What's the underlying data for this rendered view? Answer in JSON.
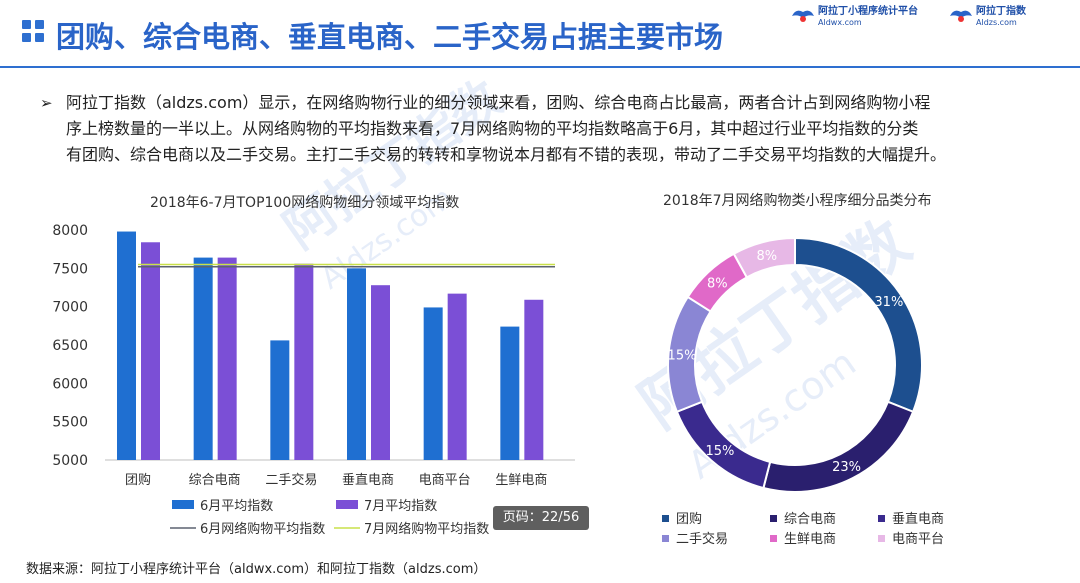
{
  "header": {
    "title": "团购、综合电商、垂直电商、二手交易占据主要市场",
    "logos": [
      {
        "name": "阿拉丁小程序统计平台",
        "url": "Aldwx.com"
      },
      {
        "name": "阿拉丁指数",
        "url": "Aldzs.com"
      }
    ]
  },
  "paragraph": {
    "bullet": "➢",
    "lines": [
      "阿拉丁指数（aldzs.com）显示，在网络购物行业的细分领域来看，团购、综合电商占比最高，两者合计占到网络购物小程",
      "序上榜数量的一半以上。从网络购物的平均指数来看，7月网络购物的平均指数略高于6月，其中超过行业平均指数的分类",
      "有团购、综合电商以及二手交易。主打二手交易的转转和享物说本月都有不错的表现，带动了二手交易平均指数的大幅提升。"
    ]
  },
  "watermark": {
    "text1": "阿拉丁指数",
    "text2": "Aldzs.com"
  },
  "page_badge": "页码：22/56",
  "source": "数据来源：阿拉丁小程序统计平台（aldwx.com）和阿拉丁指数（aldzs.com）",
  "colors": {
    "bar_june": "#1f6fd1",
    "bar_july": "#7b4fd6",
    "line_june": "#5b6270",
    "line_july": "#c9e04a"
  },
  "chart_data": [
    {
      "type": "bar",
      "title": "2018年6-7月TOP100网络购物细分领域平均指数",
      "categories": [
        "团购",
        "综合电商",
        "二手交易",
        "垂直电商",
        "电商平台",
        "生鲜电商"
      ],
      "series": [
        {
          "name": "6月平均指数",
          "values": [
            7980,
            7640,
            6560,
            7500,
            6990,
            6740
          ]
        },
        {
          "name": "7月平均指数",
          "values": [
            7840,
            7640,
            7560,
            7280,
            7170,
            7090
          ]
        }
      ],
      "reference_lines": [
        {
          "name": "6月网络购物平均指数",
          "value": 7520
        },
        {
          "name": "7月网络购物平均指数",
          "value": 7550
        }
      ],
      "yticks": [
        "8000",
        "7500",
        "7000",
        "6500",
        "6000",
        "5500",
        "5000"
      ],
      "ylim": [
        5000,
        8000
      ],
      "legend_position": "bottom"
    },
    {
      "type": "pie",
      "title": "2018年7月网络购物类小程序细分品类分布",
      "slices": [
        {
          "label": "团购",
          "value": 31,
          "text": "31%",
          "color": "#1d4f8f"
        },
        {
          "label": "综合电商",
          "value": 23,
          "text": "23%",
          "color": "#2a1f6e"
        },
        {
          "label": "垂直电商",
          "value": 15,
          "text": "15%",
          "color": "#3a2a8e"
        },
        {
          "label": "二手交易",
          "value": 15,
          "text": "15%",
          "color": "#8a86d4"
        },
        {
          "label": "生鲜电商",
          "value": 8,
          "text": "8%",
          "color": "#e069c8"
        },
        {
          "label": "电商平台",
          "value": 8,
          "text": "8%",
          "color": "#e7b8e6"
        }
      ],
      "legend_position": "bottom"
    }
  ]
}
